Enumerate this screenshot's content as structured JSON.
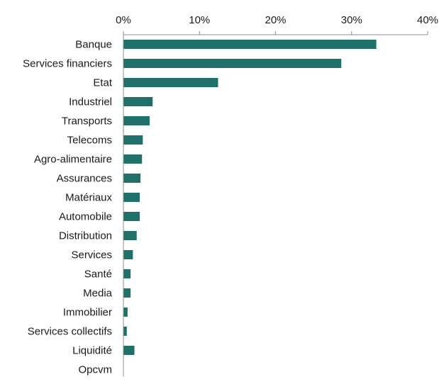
{
  "chart_data": {
    "type": "bar",
    "orientation": "horizontal",
    "title": "",
    "xlabel": "",
    "ylabel": "",
    "xlim": [
      0,
      40
    ],
    "x_ticks": [
      "0%",
      "10%",
      "20%",
      "30%",
      "40%"
    ],
    "x_axis_position": "top",
    "grid": false,
    "legend": "none",
    "bar_color": "#1f7068",
    "categories": [
      "Banque",
      "Services financiers",
      "Etat",
      "Industriel",
      "Transports",
      "Telecoms",
      "Agro-alimentaire",
      "Assurances",
      "Matériaux",
      "Automobile",
      "Distribution",
      "Services",
      "Santé",
      "Media",
      "Immobilier",
      "Services collectifs",
      "Liquidité",
      "Opcvm"
    ],
    "values": [
      33.2,
      28.6,
      12.4,
      3.8,
      3.4,
      2.5,
      2.4,
      2.2,
      2.1,
      2.1,
      1.7,
      1.2,
      0.9,
      0.9,
      0.5,
      0.4,
      1.4,
      0.0
    ]
  }
}
